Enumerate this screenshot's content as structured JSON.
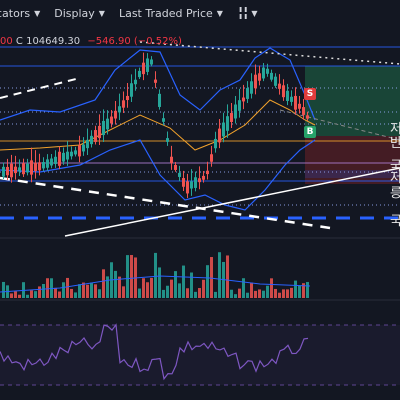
{
  "toolbar": {
    "indicators_label": "cators",
    "display_label": "Display",
    "price_source_label": "Last Traded Price",
    "chart_type_icon": "candlestick-icon"
  },
  "ohlc": {
    "open_fragment": "00",
    "close_text": "C 104649.30",
    "change_text": "−546.90 (−0.52%)"
  },
  "signals": {
    "sell": "S",
    "buy": "B"
  },
  "right_labels": [
    "저",
    "반",
    "국",
    "저",
    "릉",
    "국"
  ],
  "colors": {
    "background": "#131722",
    "up": "#26a69a",
    "down": "#ef5350",
    "band": "#2962ff",
    "ma": "#f2a22c",
    "rsi": "#7e57c2"
  }
}
